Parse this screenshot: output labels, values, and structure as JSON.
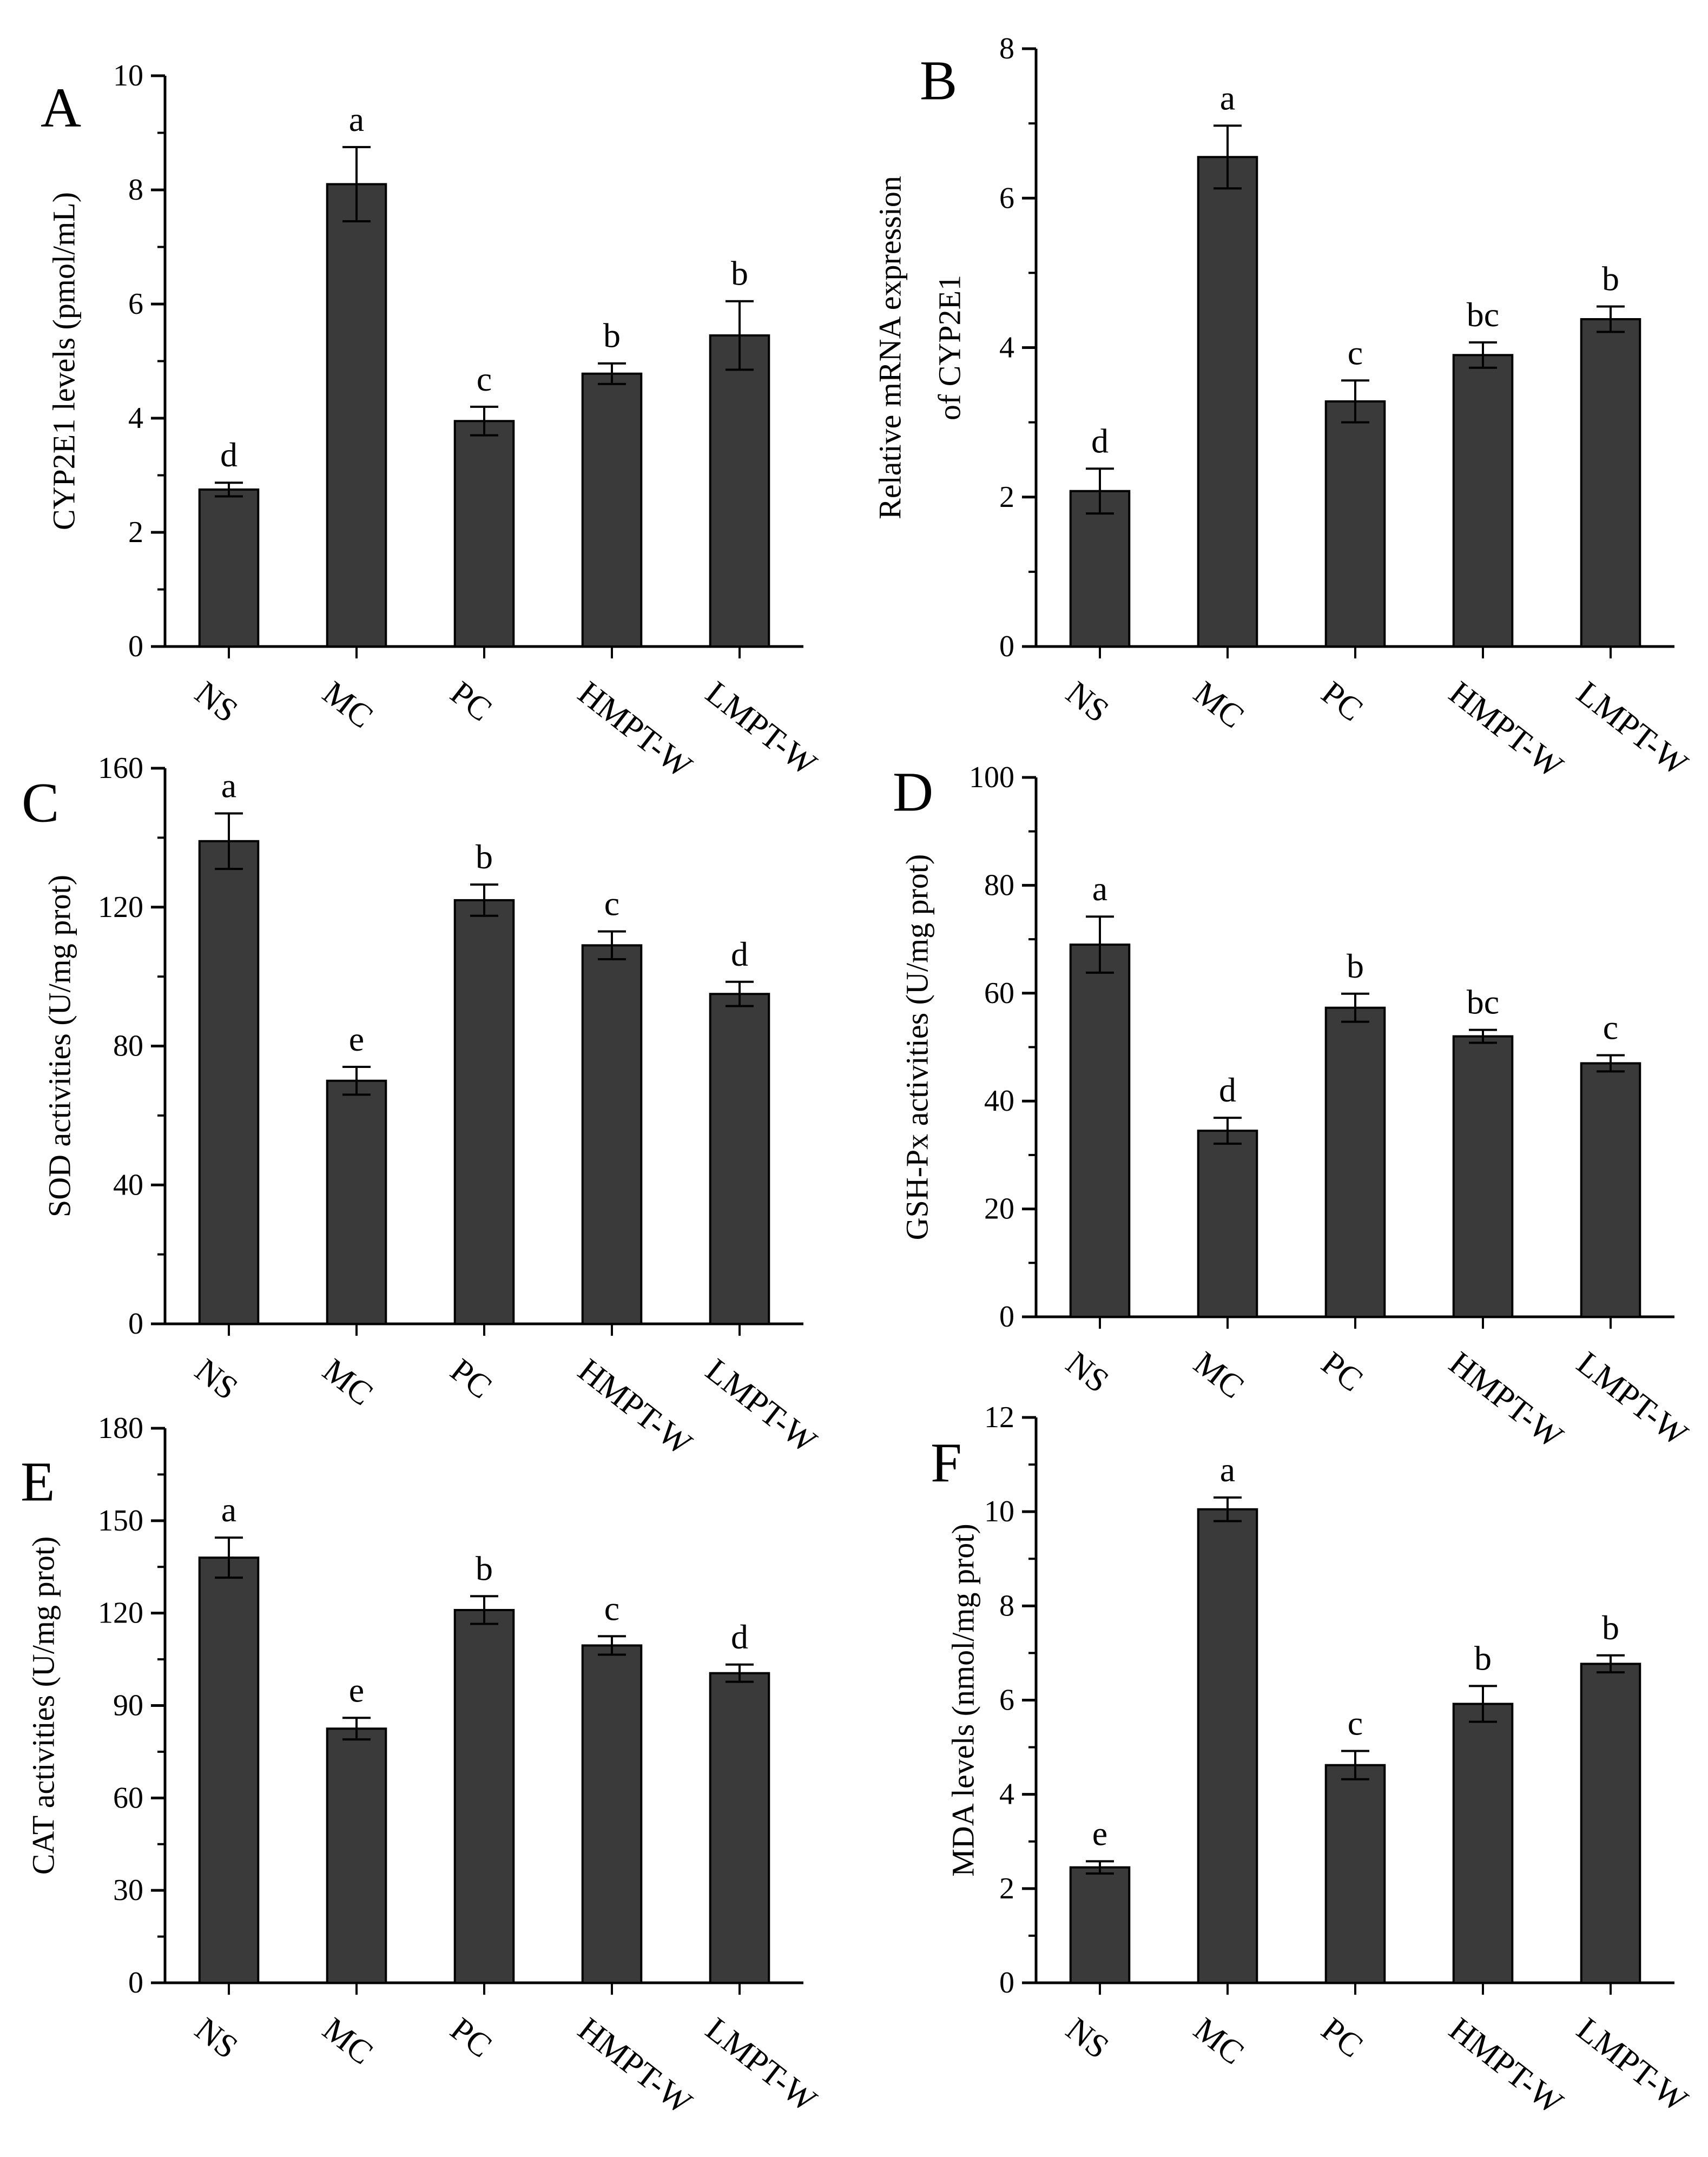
{
  "chart_data": [
    {
      "type": "bar",
      "panel_label": "A",
      "title": "",
      "categories": [
        "NS",
        "MC",
        "PC",
        "HMPT-W",
        "LMPT-W"
      ],
      "values": [
        2.75,
        8.1,
        3.95,
        4.78,
        5.45
      ],
      "errors": [
        0.12,
        0.65,
        0.25,
        0.18,
        0.6
      ],
      "significance": [
        "d",
        "a",
        "c",
        "b",
        "b"
      ],
      "ylabel": "CYP2E1  levels (pmol/mL)",
      "xlabel": "",
      "ylim": [
        0,
        10
      ],
      "yticks": [
        0,
        2,
        4,
        6,
        8,
        10
      ],
      "bar_color": "#3a3a3a",
      "grid": false
    },
    {
      "type": "bar",
      "panel_label": "B",
      "title": "",
      "categories": [
        "NS",
        "MC",
        "PC",
        "HMPT-W",
        "LMPT-W"
      ],
      "values": [
        2.08,
        6.55,
        3.28,
        3.9,
        4.38
      ],
      "errors": [
        0.3,
        0.42,
        0.28,
        0.17,
        0.17
      ],
      "significance": [
        "d",
        "a",
        "c",
        "bc",
        "b"
      ],
      "ylabel": [
        "Relative mRNA expression",
        "of CYP2E1"
      ],
      "xlabel": "",
      "ylim": [
        0,
        8
      ],
      "yticks": [
        0,
        2,
        4,
        6,
        8
      ],
      "bar_color": "#3a3a3a",
      "grid": false
    },
    {
      "type": "bar",
      "panel_label": "C",
      "title": "",
      "categories": [
        "NS",
        "MC",
        "PC",
        "HMPT-W",
        "LMPT-W"
      ],
      "values": [
        139,
        70,
        122,
        109,
        95
      ],
      "errors": [
        8,
        4,
        4.5,
        4,
        3.5
      ],
      "significance": [
        "a",
        "e",
        "b",
        "c",
        "d"
      ],
      "ylabel": "SOD activities (U/mg prot)",
      "xlabel": "",
      "ylim": [
        0,
        160
      ],
      "yticks": [
        0,
        40,
        80,
        120,
        160
      ],
      "bar_color": "#3a3a3a",
      "grid": false
    },
    {
      "type": "bar",
      "panel_label": "D",
      "title": "",
      "categories": [
        "NS",
        "MC",
        "PC",
        "HMPT-W",
        "LMPT-W"
      ],
      "values": [
        69,
        34.5,
        57.3,
        52,
        47
      ],
      "errors": [
        5.2,
        2.4,
        2.6,
        1.2,
        1.5
      ],
      "significance": [
        "a",
        "d",
        "b",
        "bc",
        "c"
      ],
      "ylabel": "GSH-Px activities (U/mg prot)",
      "xlabel": "",
      "ylim": [
        0,
        100
      ],
      "yticks": [
        0,
        20,
        40,
        60,
        80,
        100
      ],
      "bar_color": "#3a3a3a",
      "grid": false
    },
    {
      "type": "bar",
      "panel_label": "E",
      "title": "",
      "categories": [
        "NS",
        "MC",
        "PC",
        "HMPT-W",
        "LMPT-W"
      ],
      "values": [
        138,
        82.5,
        121,
        109.5,
        100.5
      ],
      "errors": [
        6.5,
        3.5,
        4.5,
        3,
        2.8
      ],
      "significance": [
        "a",
        "e",
        "b",
        "c",
        "d"
      ],
      "ylabel": "CAT activities (U/mg prot)",
      "xlabel": "",
      "ylim": [
        0,
        180
      ],
      "yticks": [
        0,
        30,
        60,
        90,
        120,
        150,
        180
      ],
      "bar_color": "#3a3a3a",
      "grid": false
    },
    {
      "type": "bar",
      "panel_label": "F",
      "title": "",
      "categories": [
        "NS",
        "MC",
        "PC",
        "HMPT-W",
        "LMPT-W"
      ],
      "values": [
        2.45,
        10.05,
        4.62,
        5.92,
        6.77
      ],
      "errors": [
        0.13,
        0.25,
        0.3,
        0.38,
        0.18
      ],
      "significance": [
        "e",
        "a",
        "c",
        "b",
        "b"
      ],
      "ylabel": "MDA levels (nmol/mg prot)",
      "xlabel": "",
      "ylim": [
        0,
        12
      ],
      "yticks": [
        0,
        2,
        4,
        6,
        8,
        10,
        12
      ],
      "bar_color": "#3a3a3a",
      "grid": false
    }
  ]
}
